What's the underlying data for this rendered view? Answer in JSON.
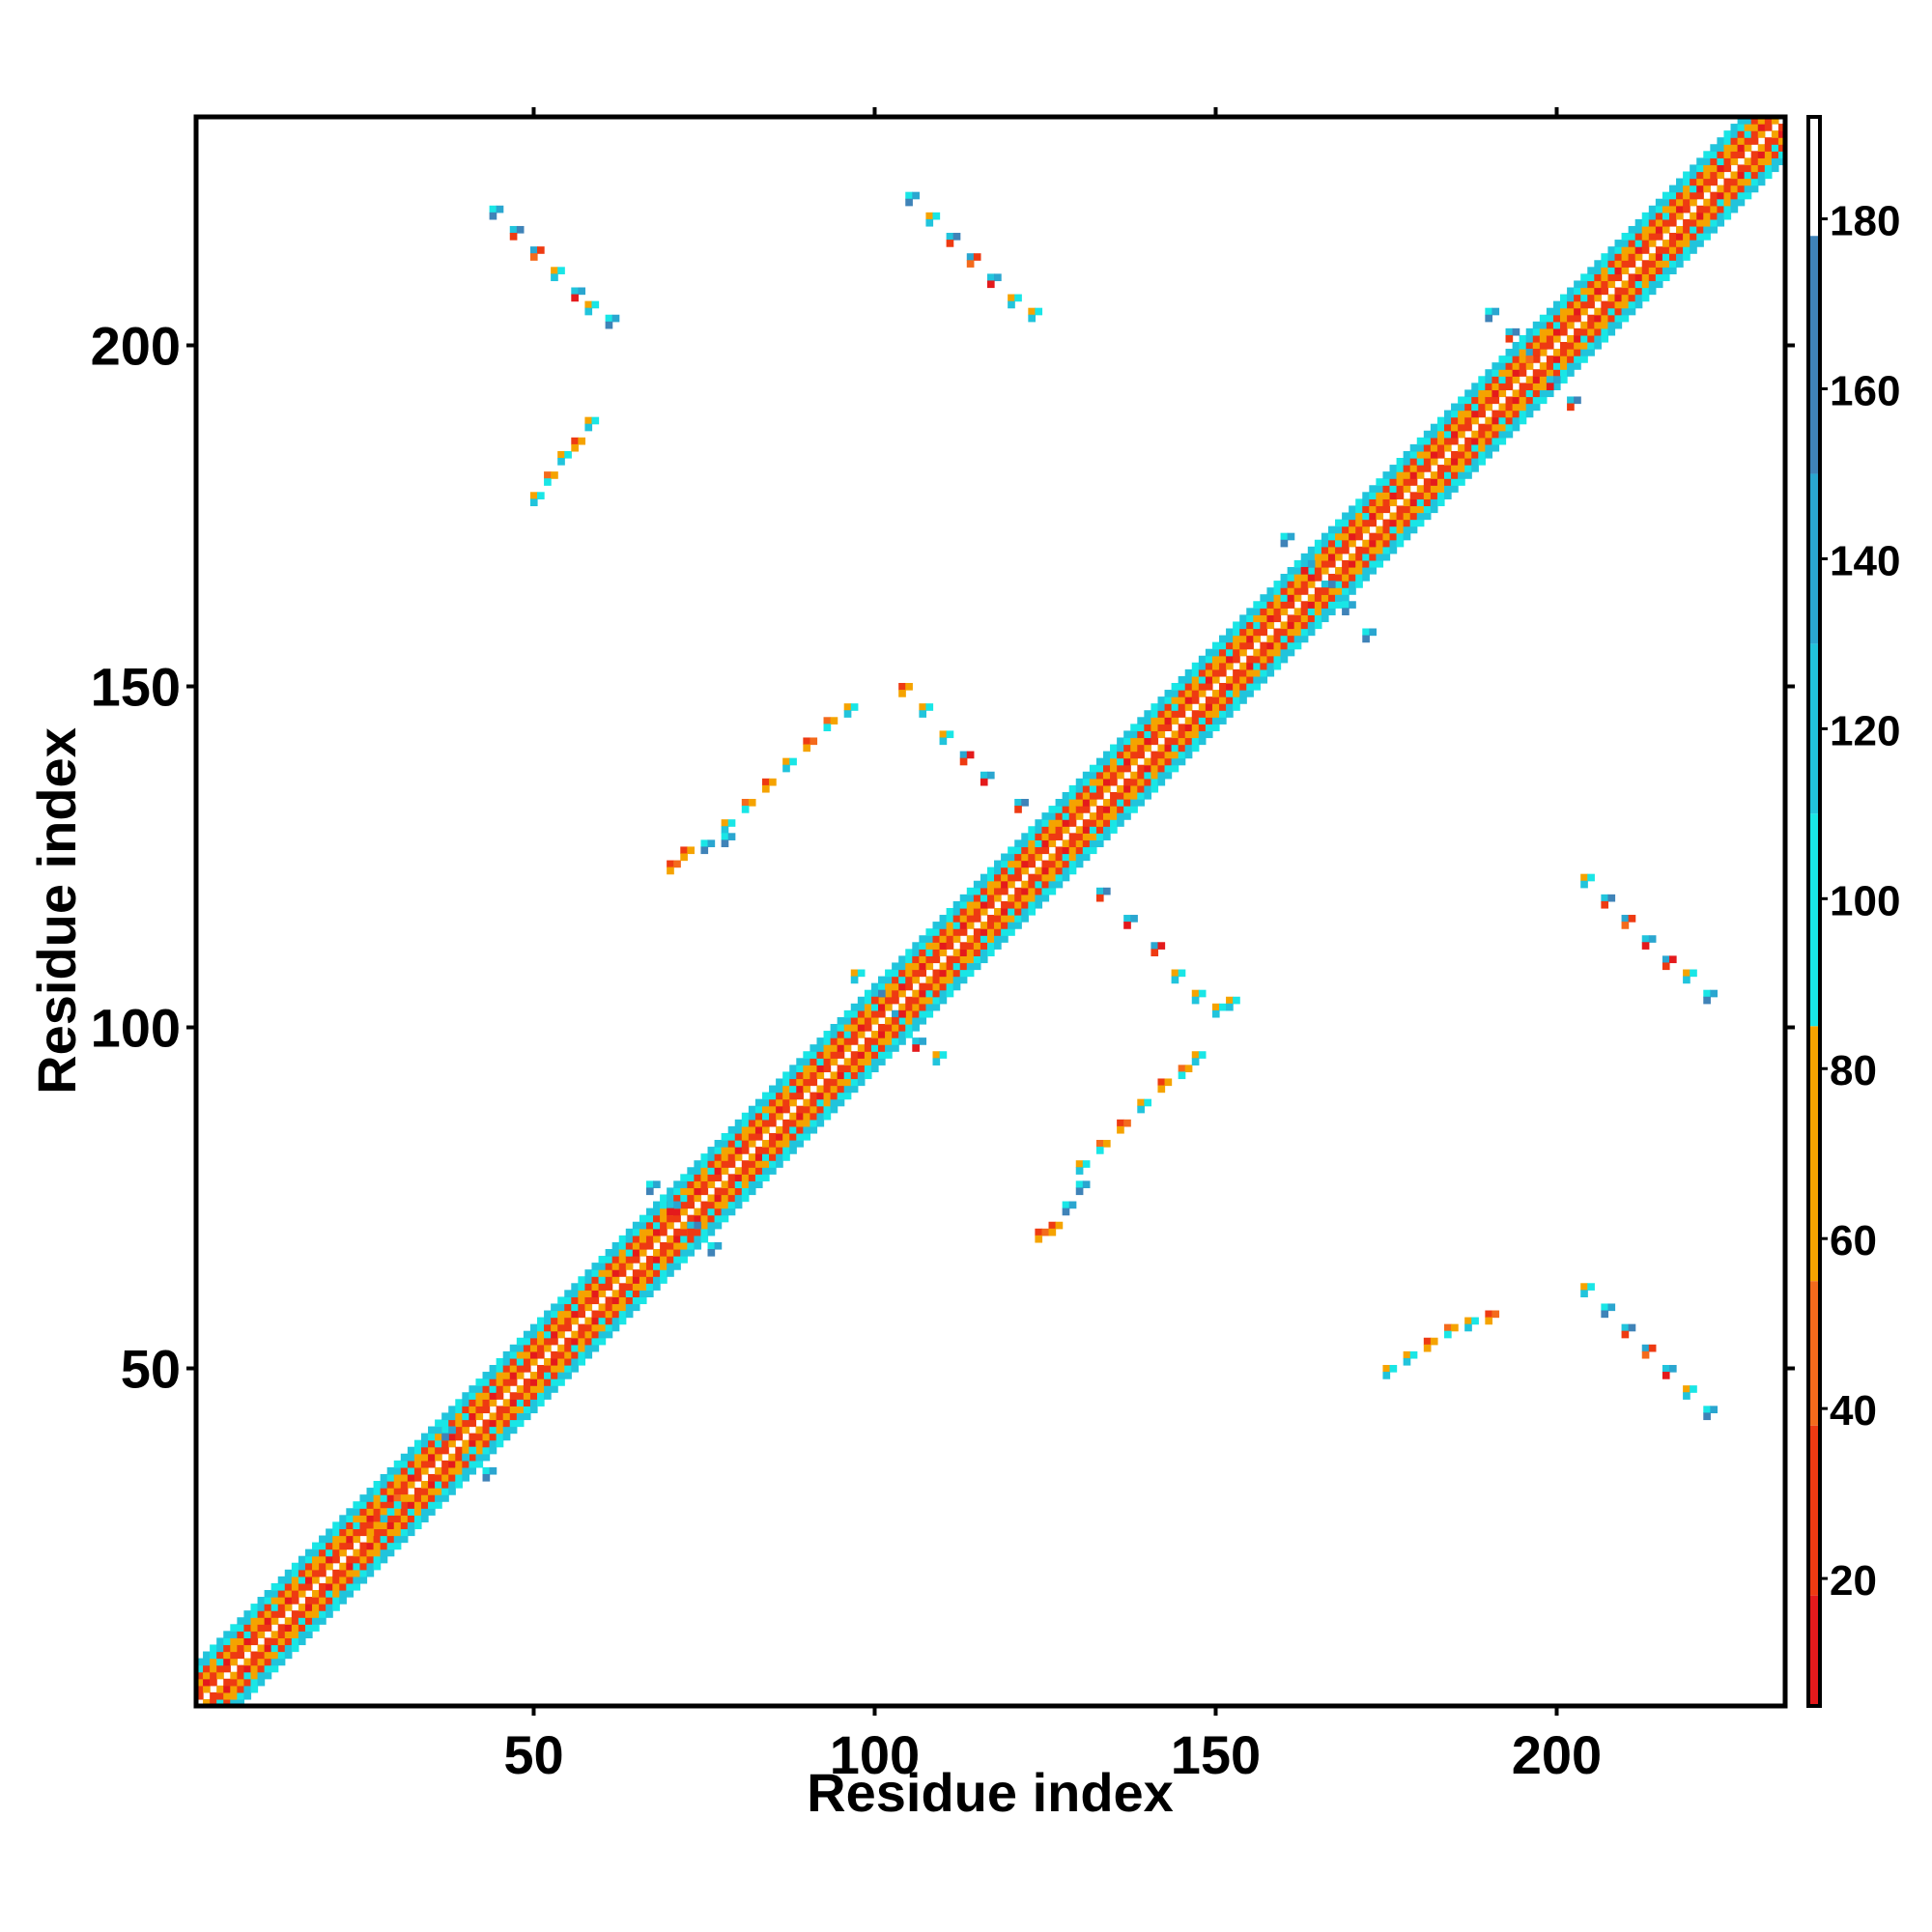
{
  "chart_data": {
    "type": "heatmap",
    "title": "",
    "xlabel": "Residue index",
    "ylabel": "Residue index",
    "xlim": [
      1,
      233
    ],
    "ylim": [
      1,
      233
    ],
    "x_ticks": [
      50,
      100,
      150,
      200
    ],
    "y_ticks": [
      50,
      100,
      150,
      200
    ],
    "colorbar": {
      "range": [
        5,
        192
      ],
      "ticks": [
        20,
        40,
        60,
        80,
        100,
        120,
        140,
        160,
        180
      ],
      "bands": [
        {
          "from": 5,
          "to": 18,
          "color": "#e41a1c"
        },
        {
          "from": 18,
          "to": 38,
          "color": "#ee3a12"
        },
        {
          "from": 38,
          "to": 55,
          "color": "#f46a1c"
        },
        {
          "from": 55,
          "to": 85,
          "color": "#f5a300"
        },
        {
          "from": 85,
          "to": 110,
          "color": "#19e6e6"
        },
        {
          "from": 110,
          "to": 130,
          "color": "#21c4dc"
        },
        {
          "from": 130,
          "to": 150,
          "color": "#2aa6d0"
        },
        {
          "from": 150,
          "to": 178,
          "color": "#3f83b8"
        },
        {
          "from": 178,
          "to": 192,
          "color": "#ffffff"
        }
      ]
    },
    "diagonal_band": {
      "from": 1,
      "to": 233,
      "half_width": 6,
      "note_segments": [
        {
          "x0": 1,
          "x1": 233,
          "offset_values": [
            10,
            35,
            65,
            95,
            125
          ]
        }
      ]
    },
    "contact_clusters": [
      {
        "x": [
          44,
          47,
          50,
          53,
          56,
          58,
          61
        ],
        "y": [
          220,
          217,
          214,
          211,
          208,
          206,
          204
        ],
        "values": [
          100,
          120,
          140,
          70,
          110,
          60,
          100
        ]
      },
      {
        "x": [
          105,
          108,
          111,
          114,
          117,
          120,
          123
        ],
        "y": [
          222,
          219,
          216,
          213,
          210,
          207,
          205
        ],
        "values": [
          100,
          60,
          120,
          140,
          110,
          60,
          70
        ]
      },
      {
        "x": [
          50,
          52,
          54,
          56,
          58
        ],
        "y": [
          178,
          181,
          184,
          186,
          189
        ],
        "values": [
          70,
          40,
          60,
          30,
          60
        ]
      },
      {
        "x": [
          78,
          81,
          84,
          87,
          90,
          93,
          96
        ],
        "y": [
          130,
          133,
          136,
          139,
          142,
          145,
          147
        ],
        "values": [
          60,
          40,
          30,
          60,
          20,
          40,
          70
        ]
      },
      {
        "x": [
          70,
          72,
          75,
          78
        ],
        "y": [
          124,
          126,
          127,
          128
        ],
        "values": [
          20,
          30,
          100,
          100
        ]
      },
      {
        "x": [
          104,
          107,
          110,
          113,
          116,
          121
        ],
        "y": [
          150,
          147,
          143,
          140,
          137,
          133
        ],
        "values": [
          30,
          60,
          70,
          130,
          110,
          120
        ]
      },
      {
        "x": [
          130,
          133,
          136,
          139,
          142,
          145,
          147
        ],
        "y": [
          80,
          83,
          86,
          89,
          92,
          94,
          96
        ],
        "values": [
          60,
          40,
          20,
          60,
          30,
          40,
          60
        ]
      },
      {
        "x": [
          124,
          126,
          128,
          130
        ],
        "y": [
          70,
          71,
          74,
          77
        ],
        "values": [
          20,
          30,
          100,
          100
        ]
      },
      {
        "x": [
          133,
          137,
          141,
          144,
          147,
          150,
          152
        ],
        "y": [
          120,
          116,
          112,
          108,
          105,
          103,
          104
        ],
        "values": [
          120,
          110,
          130,
          60,
          70,
          60,
          70
        ]
      },
      {
        "x": [
          175,
          178,
          181,
          184,
          187,
          190
        ],
        "y": [
          50,
          52,
          54,
          56,
          57,
          58
        ],
        "values": [
          70,
          60,
          30,
          40,
          60,
          20
        ]
      },
      {
        "x": [
          204,
          207,
          210,
          213,
          216,
          219,
          222
        ],
        "y": [
          122,
          119,
          116,
          113,
          110,
          108,
          105
        ],
        "values": [
          60,
          120,
          140,
          110,
          130,
          70,
          100
        ]
      },
      {
        "x": [
          204,
          207,
          210,
          213,
          216,
          219,
          222
        ],
        "y": [
          62,
          59,
          56,
          53,
          50,
          47,
          44
        ],
        "values": [
          60,
          100,
          120,
          140,
          110,
          70,
          100
        ]
      },
      {
        "x": [
          67,
          70,
          73,
          76
        ],
        "y": [
          77,
          74,
          71,
          68
        ],
        "values": [
          100,
          110,
          120,
          100
        ]
      },
      {
        "x": [
          97,
          100,
          103,
          106,
          109
        ],
        "y": [
          108,
          105,
          102,
          98,
          96
        ],
        "values": [
          60,
          120,
          130,
          110,
          60
        ]
      },
      {
        "x": [
          160,
          163,
          166,
          169,
          172
        ],
        "y": [
          172,
          168,
          165,
          162,
          158
        ],
        "values": [
          100,
          110,
          120,
          100,
          100
        ]
      },
      {
        "x": [
          190,
          193,
          196,
          199,
          202
        ],
        "y": [
          205,
          202,
          199,
          195,
          192
        ],
        "values": [
          100,
          120,
          140,
          110,
          120
        ]
      },
      {
        "x": [
          37,
          40,
          43
        ],
        "y": [
          41,
          38,
          35
        ],
        "values": [
          100,
          60,
          100
        ]
      },
      {
        "x": [
          26,
          28,
          30
        ],
        "y": [
          27,
          29,
          31
        ],
        "values": [
          30,
          60,
          40
        ]
      }
    ]
  }
}
